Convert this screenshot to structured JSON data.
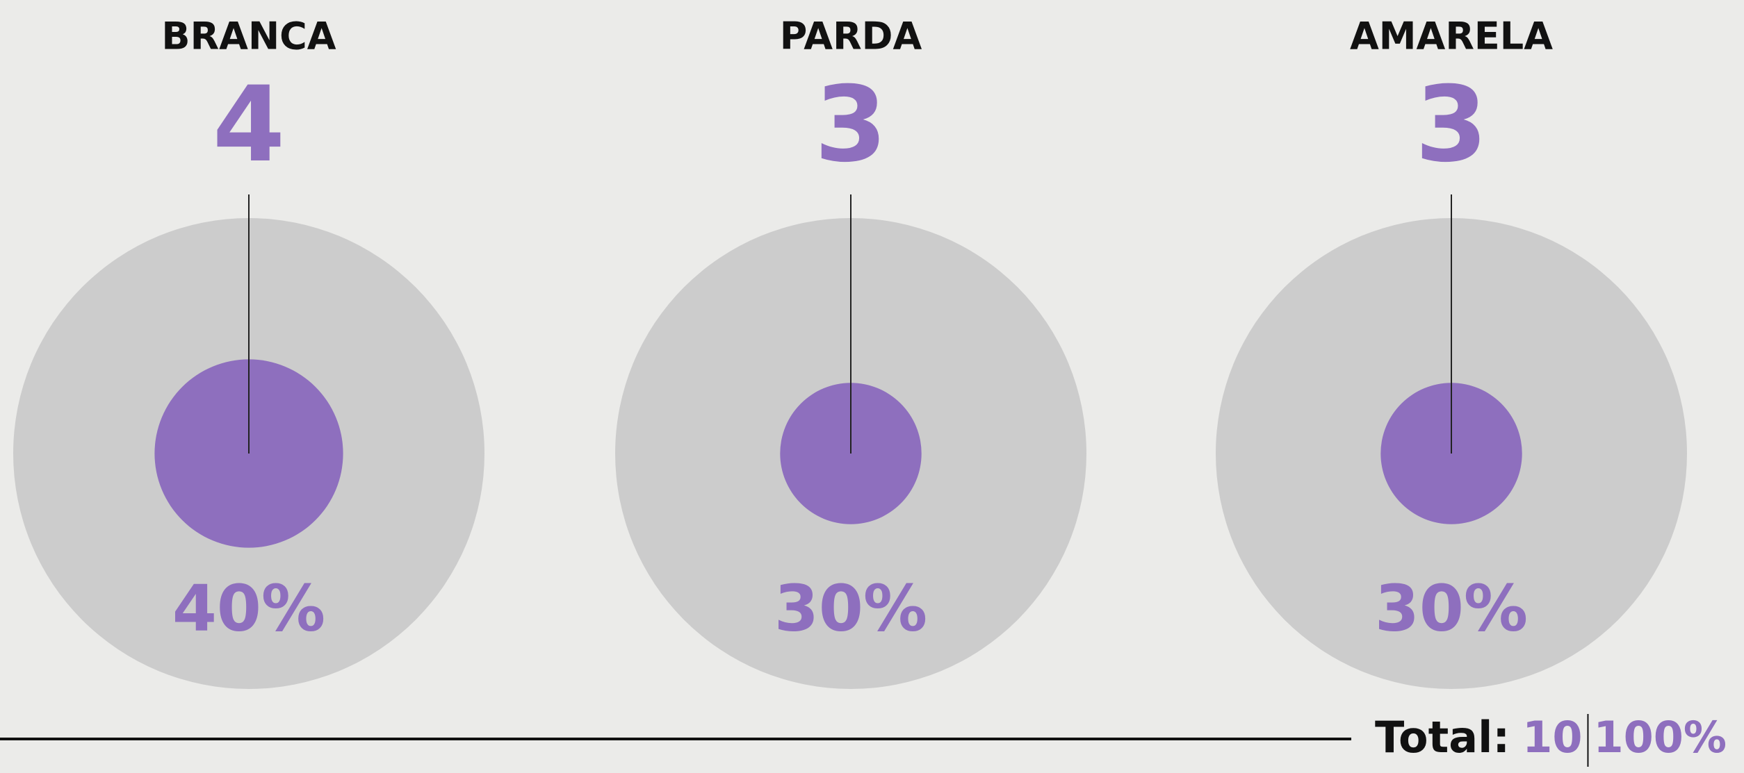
{
  "chart_data": {
    "type": "proportional-circle",
    "categories": [
      "BRANCA",
      "PARDA",
      "AMARELA"
    ],
    "values": [
      4,
      3,
      3
    ],
    "percent_values": [
      40,
      30,
      30
    ],
    "percent_labels": [
      "40%",
      "30%",
      "30%"
    ],
    "total_label": "Total:",
    "total": 10,
    "total_percent": 100,
    "total_percent_label": "100%",
    "color": "#8e6fbe",
    "background_color": "#cccccc"
  }
}
